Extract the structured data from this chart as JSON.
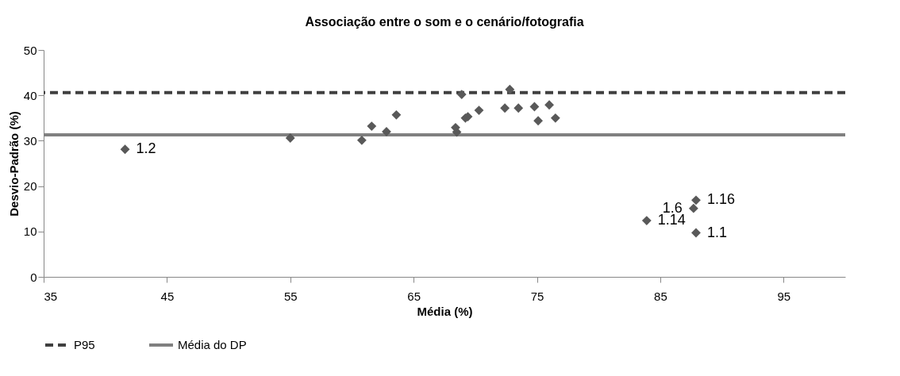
{
  "chart_data": {
    "type": "scatter",
    "title": "Associação entre o som e o cenário/fotografia",
    "xlabel": "Média (%)",
    "ylabel": "Desvio-Padrão (%)",
    "x": [
      41.6,
      55.0,
      60.8,
      61.6,
      62.8,
      63.6,
      68.5,
      68.4,
      68.9,
      69.2,
      69.4,
      70.3,
      72.4,
      72.8,
      73.5,
      74.8,
      75.1,
      76.0,
      76.5,
      83.9,
      87.9,
      87.7,
      87.9
    ],
    "series": [
      {
        "color": "#595959",
        "values": [
          28.1,
          30.6,
          30.1,
          33.2,
          32.0,
          35.7,
          31.9,
          32.9,
          40.2,
          35.0,
          35.3,
          36.7,
          37.2,
          41.3,
          37.2,
          37.5,
          34.4,
          37.9,
          35.0,
          12.4,
          16.9,
          15.1,
          9.7
        ]
      }
    ],
    "annotations": [
      {
        "text": "1.2",
        "x": 41.6,
        "y": 28.1
      },
      {
        "text": "1.14",
        "x": 83.9,
        "y": 12.4
      },
      {
        "text": "1.16",
        "x": 87.9,
        "y": 16.9
      },
      {
        "text": "1.6",
        "x": 87.7,
        "y": 15.1
      },
      {
        "text": "1.1",
        "x": 87.9,
        "y": 9.7
      }
    ],
    "marker": "diamond",
    "xlim": [
      35,
      100
    ],
    "xticks": [
      35,
      45,
      55,
      65,
      75,
      85,
      95
    ],
    "ylim": [
      0,
      50
    ],
    "yticks": [
      0,
      10,
      20,
      30,
      40,
      50
    ],
    "grid": false,
    "legend": "bottom",
    "ref_lines": [
      {
        "axis": "y",
        "value": 40.6,
        "label": "P95",
        "color": "#404040",
        "line_style": "dashed"
      },
      {
        "axis": "y",
        "value": 31.3,
        "label": "Média do DP",
        "color": "#808080",
        "line_style": "solid"
      }
    ]
  }
}
